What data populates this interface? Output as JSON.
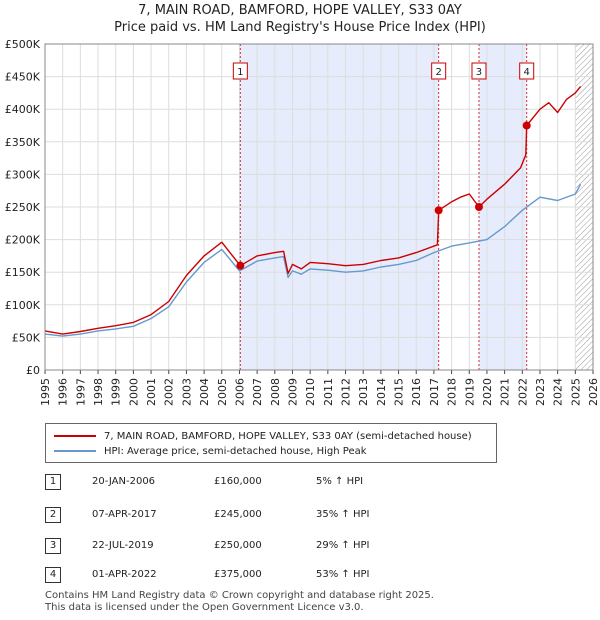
{
  "title_line1": "7, MAIN ROAD, BAMFORD, HOPE VALLEY, S33 0AY",
  "title_line2": "Price paid vs. HM Land Registry's House Price Index (HPI)",
  "colors": {
    "property": "#cc0000",
    "hpi": "#6699cc",
    "shade": "#e6ecfb",
    "grid": "#dddddd"
  },
  "legend": {
    "property_label": "7, MAIN ROAD, BAMFORD, HOPE VALLEY, S33 0AY (semi-detached house)",
    "hpi_label": "HPI: Average price, semi-detached house, High Peak"
  },
  "transactions": [
    {
      "num": "1",
      "date": "20-JAN-2006",
      "price": "£160,000",
      "hpi": "5% ↑ HPI"
    },
    {
      "num": "2",
      "date": "07-APR-2017",
      "price": "£245,000",
      "hpi": "35% ↑ HPI"
    },
    {
      "num": "3",
      "date": "22-JUL-2019",
      "price": "£250,000",
      "hpi": "29% ↑ HPI"
    },
    {
      "num": "4",
      "date": "01-APR-2022",
      "price": "£375,000",
      "hpi": "53% ↑ HPI"
    }
  ],
  "footer_line1": "Contains HM Land Registry data © Crown copyright and database right 2025.",
  "footer_line2": "This data is licensed under the Open Government Licence v3.0.",
  "chart_data": {
    "type": "line",
    "title": "Price paid vs. HM Land Registry's House Price Index (HPI)",
    "xlim": [
      1995,
      2026
    ],
    "ylim": [
      0,
      500000
    ],
    "x_ticks": [
      1995,
      1996,
      1997,
      1998,
      1999,
      2000,
      2001,
      2002,
      2003,
      2004,
      2005,
      2006,
      2007,
      2008,
      2009,
      2010,
      2011,
      2012,
      2013,
      2014,
      2015,
      2016,
      2017,
      2018,
      2019,
      2020,
      2021,
      2022,
      2023,
      2024,
      2025,
      2026
    ],
    "y_ticks": [
      0,
      50000,
      100000,
      150000,
      200000,
      250000,
      300000,
      350000,
      400000,
      450000,
      500000
    ],
    "y_tick_labels": [
      "£0",
      "£50K",
      "£100K",
      "£150K",
      "£200K",
      "£250K",
      "£300K",
      "£350K",
      "£400K",
      "£450K",
      "£500K"
    ],
    "shaded_ranges": [
      [
        2006.05,
        2017.27
      ],
      [
        2019.55,
        2022.25
      ]
    ],
    "hatched_from": 2025.0,
    "sales": [
      {
        "label": "1",
        "x": 2006.05,
        "y": 160000
      },
      {
        "label": "2",
        "x": 2017.27,
        "y": 245000
      },
      {
        "label": "3",
        "x": 2019.55,
        "y": 250000
      },
      {
        "label": "4",
        "x": 2022.25,
        "y": 375000
      }
    ],
    "series": [
      {
        "name": "7, MAIN ROAD, BAMFORD, HOPE VALLEY, S33 0AY (semi-detached house)",
        "x": [
          1995,
          1996,
          1997,
          1998,
          1999,
          2000,
          2001,
          2002,
          2003,
          2004,
          2005,
          2006.05,
          2007,
          2008,
          2008.5,
          2008.75,
          2009,
          2009.5,
          2010,
          2011,
          2012,
          2013,
          2014,
          2015,
          2016,
          2017.2,
          2017.27,
          2018,
          2018.5,
          2019,
          2019.55,
          2020,
          2021,
          2021.9,
          2022.2,
          2022.25,
          2023,
          2023.5,
          2024,
          2024.5,
          2025,
          2025.3
        ],
        "values": [
          60000,
          55000,
          59000,
          64000,
          68000,
          73000,
          85000,
          105000,
          145000,
          175000,
          196000,
          160000,
          175000,
          180000,
          182000,
          148000,
          162000,
          155000,
          165000,
          163000,
          160000,
          162000,
          168000,
          172000,
          180000,
          192000,
          245000,
          258000,
          265000,
          270000,
          250000,
          262000,
          285000,
          310000,
          330000,
          375000,
          400000,
          410000,
          395000,
          415000,
          425000,
          435000
        ]
      },
      {
        "name": "HPI: Average price, semi-detached house, High Peak",
        "x": [
          1995,
          1996,
          1997,
          1998,
          1999,
          2000,
          2001,
          2002,
          2003,
          2004,
          2005,
          2006,
          2007,
          2008,
          2008.5,
          2008.75,
          2009,
          2009.5,
          2010,
          2011,
          2012,
          2013,
          2014,
          2015,
          2016,
          2017,
          2018,
          2019,
          2020,
          2021,
          2022,
          2023,
          2024,
          2025,
          2025.3
        ],
        "values": [
          55000,
          52000,
          55000,
          60000,
          63000,
          67000,
          79000,
          97000,
          135000,
          165000,
          185000,
          152000,
          167000,
          172000,
          174000,
          142000,
          152000,
          147000,
          155000,
          153000,
          150000,
          152000,
          158000,
          162000,
          168000,
          180000,
          190000,
          195000,
          200000,
          220000,
          245000,
          265000,
          260000,
          270000,
          285000
        ]
      }
    ]
  }
}
